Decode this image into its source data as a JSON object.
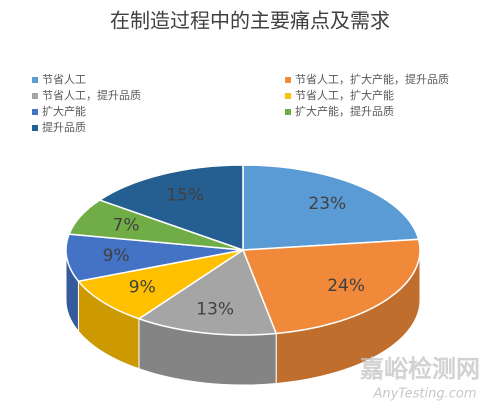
{
  "chart_data": {
    "type": "pie",
    "title": "在制造过程中的主要痛点及需求",
    "categories": [
      "节省人工",
      "节省人工，扩大产能，提升品质",
      "节省人工，提升品质",
      "节省人工，扩大产能",
      "扩大产能",
      "扩大产能，提升品质",
      "提升品质"
    ],
    "values": [
      23,
      24,
      13,
      9,
      9,
      7,
      15
    ],
    "value_labels": [
      "23%",
      "24%",
      "13%",
      "9%",
      "9%",
      "7%",
      "15%"
    ],
    "colors": [
      "#5b9bd5",
      "#f08a3a",
      "#a5a5a5",
      "#ffc000",
      "#4472c4",
      "#70ad47",
      "#255e91"
    ],
    "legend": "top"
  },
  "watermark": {
    "title": "嘉峪检测网",
    "subtitle": "AnyTesting.com"
  }
}
